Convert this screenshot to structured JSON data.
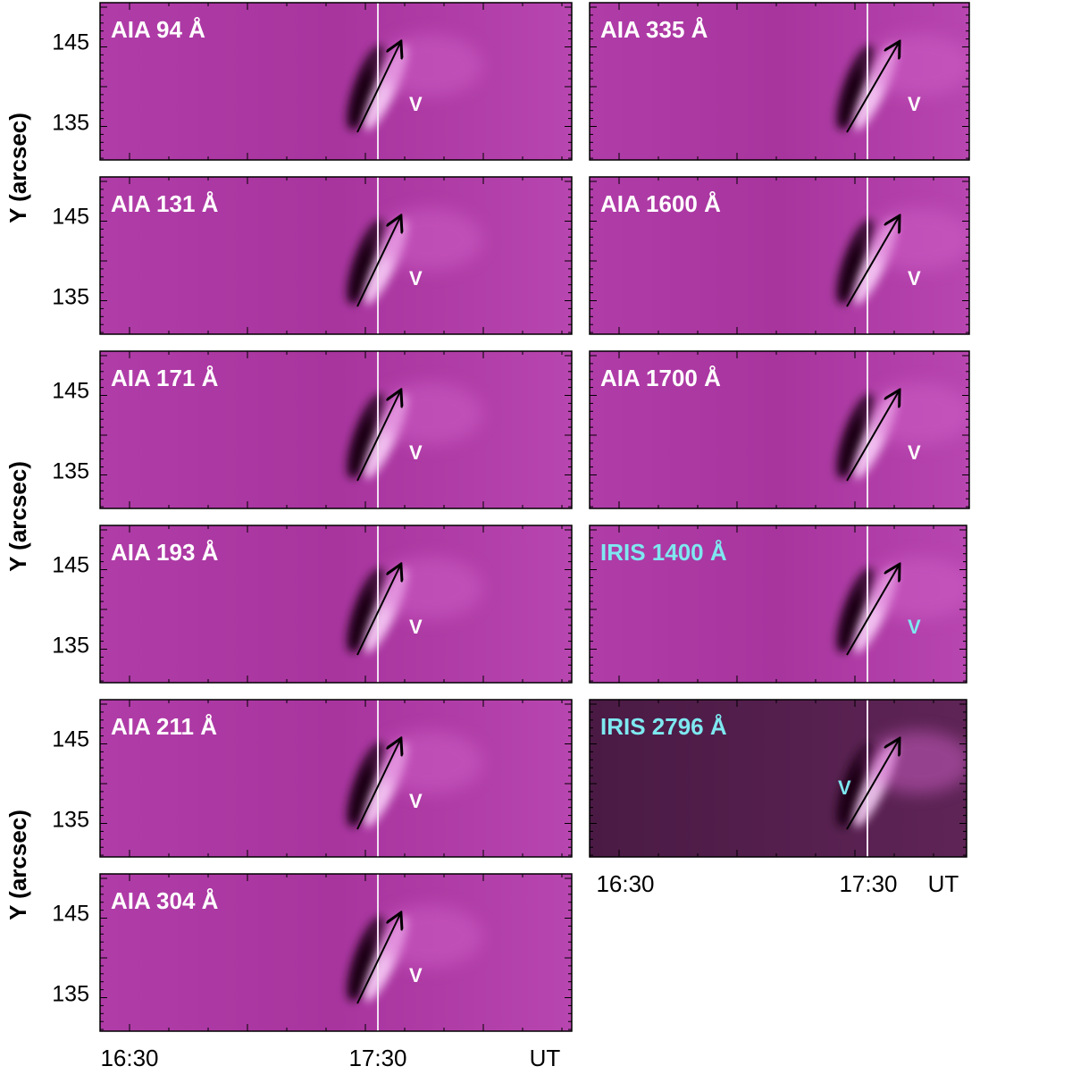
{
  "y_axis_label": "Y (arcsec)",
  "y_ticks": [
    "145",
    "135"
  ],
  "x_ticks": [
    "16:30",
    "17:30"
  ],
  "x_unit": "UT",
  "left_panels": [
    {
      "label": "AIA 94 Å",
      "v": "V"
    },
    {
      "label": "AIA 131 Å",
      "v": "V"
    },
    {
      "label": "AIA 171 Å",
      "v": "V"
    },
    {
      "label": "AIA 193 Å",
      "v": "V"
    },
    {
      "label": "AIA 211 Å",
      "v": "V"
    },
    {
      "label": "AIA 304 Å",
      "v": "V"
    }
  ],
  "right_panels": [
    {
      "label": "AIA 335 Å",
      "v": "V"
    },
    {
      "label": "AIA 1600 Å",
      "v": "V"
    },
    {
      "label": "AIA 1700 Å",
      "v": "V"
    },
    {
      "label": "IRIS 1400 Å",
      "v": "V",
      "label_color": "#7ee8f0"
    },
    {
      "label": "IRIS 2796 Å",
      "v": "V",
      "label_color": "#7ee8f0"
    }
  ]
}
